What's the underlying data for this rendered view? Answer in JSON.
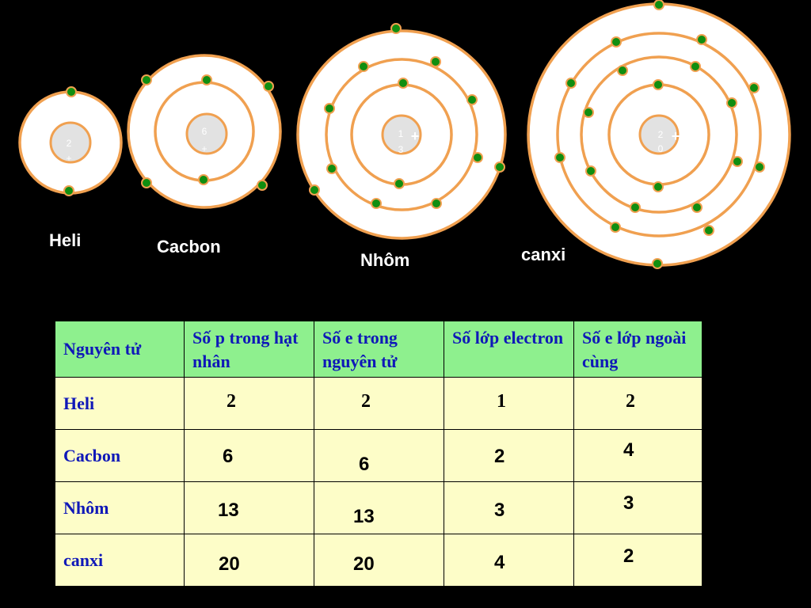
{
  "colors": {
    "background": "#000000",
    "shell": "#f0a050",
    "electron": "#108e10",
    "header_bg": "#8ef08e",
    "cell_bg": "#fdfdc8",
    "header_text": "#0f18b8"
  },
  "atoms": [
    {
      "label": "Heli",
      "nucleus": [
        "2",
        "+"
      ],
      "shells": [
        2
      ]
    },
    {
      "label": "Cacbon",
      "nucleus": [
        "6",
        "+"
      ],
      "shells": [
        2,
        4
      ]
    },
    {
      "label": "Nhôm",
      "nucleus": [
        "1",
        "3",
        "+"
      ],
      "shells": [
        2,
        8,
        3
      ]
    },
    {
      "label": "canxi",
      "nucleus": [
        "2",
        "0",
        "+"
      ],
      "shells": [
        2,
        8,
        8,
        2
      ]
    }
  ],
  "table": {
    "headers": [
      "Nguyên tử",
      "Số p trong hạt nhân",
      "Số e trong nguyên tử",
      "Số lớp electron",
      "Số e lớp ngoài cùng"
    ],
    "rows": [
      {
        "name": "Heli",
        "values": [
          "2",
          "2",
          "1",
          "2"
        ]
      },
      {
        "name": "Cacbon",
        "values": [
          "6",
          "6",
          "2",
          "4"
        ]
      },
      {
        "name": "Nhôm",
        "values": [
          "13",
          "13",
          "3",
          "3"
        ]
      },
      {
        "name": "canxi",
        "values": [
          "20",
          "20",
          "4",
          "2"
        ]
      }
    ]
  }
}
